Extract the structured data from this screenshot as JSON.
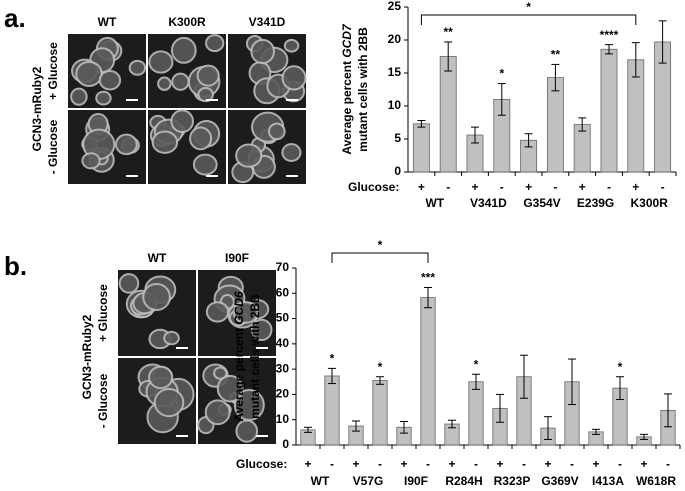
{
  "panel_a": {
    "label": "a.",
    "columns": [
      "WT",
      "K300R",
      "V341D"
    ],
    "row_title": "GCN3-mRuby2",
    "rows": [
      "+ Glucose",
      "- Glucose"
    ]
  },
  "panel_b": {
    "label": "b.",
    "columns": [
      "WT",
      "I90F"
    ],
    "row_title": "GCN3-mRuby2",
    "rows": [
      "+ Glucose",
      "- Glucose"
    ]
  },
  "chart_data": [
    {
      "type": "bar",
      "ylabel": {
        "prefix": "Average percent ",
        "gene": "GCD7",
        "line2": "mutant cells with 2BB"
      },
      "row_label": "Glucose:",
      "categories": [
        "+",
        "-",
        "+",
        "-",
        "+",
        "-",
        "+",
        "-",
        "+",
        "-"
      ],
      "groups": [
        "WT",
        "V341D",
        "G354V",
        "E239G",
        "K300R"
      ],
      "values": [
        7.3,
        17.5,
        5.6,
        11,
        4.8,
        14.3,
        7.2,
        18.6,
        17,
        19.7
      ],
      "errors": [
        0.5,
        2.2,
        1.2,
        2.4,
        1,
        2,
        1,
        0.7,
        2.6,
        3.2
      ],
      "sig_labels": [
        null,
        "**",
        null,
        "*",
        null,
        "**",
        null,
        "****",
        null,
        null
      ],
      "bracket_label": "*",
      "color": "#c0c0c0",
      "ylim": [
        0,
        25
      ],
      "yticks": [
        0,
        5,
        10,
        15,
        20,
        25
      ]
    },
    {
      "type": "bar",
      "ylabel": {
        "prefix": "Average percent ",
        "gene": "GCD6",
        "line2": "mutant cells with 2BB"
      },
      "row_label": "Glucose:",
      "categories": [
        "+",
        "-",
        "+",
        "-",
        "+",
        "-",
        "+",
        "-",
        "+",
        "-",
        "+",
        "-",
        "+",
        "-",
        "+",
        "-"
      ],
      "groups": [
        "WT",
        "V57G",
        "I90F",
        "R284H",
        "R323P",
        "G369V",
        "I413A",
        "W618R"
      ],
      "values": [
        6,
        27.3,
        7.5,
        25.5,
        7,
        58.3,
        8.3,
        25,
        14.5,
        27,
        6.7,
        25,
        5.2,
        22.5,
        3.2,
        13.7
      ],
      "errors": [
        1,
        3,
        2,
        1.5,
        2.3,
        4,
        1.5,
        3,
        5.5,
        8.5,
        4.5,
        9,
        1,
        4.5,
        1,
        6.5
      ],
      "sig_labels": [
        null,
        "*",
        null,
        "*",
        null,
        "***",
        null,
        "*",
        null,
        null,
        null,
        null,
        null,
        "*",
        null,
        null
      ],
      "bracket_label": "*",
      "color": "#c0c0c0",
      "ylim": [
        0,
        70
      ],
      "yticks": [
        0,
        10,
        20,
        30,
        40,
        50,
        60,
        70
      ]
    }
  ]
}
